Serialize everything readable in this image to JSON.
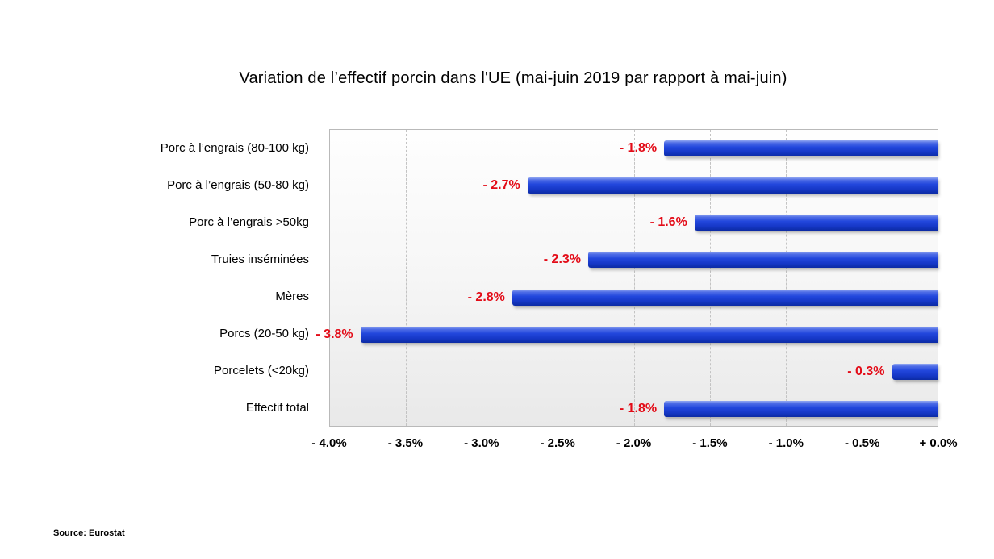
{
  "page": {
    "title": "Variation de l’effectif porcin dans l'UE (mai-juin 2019 par rapport à mai-juin)",
    "source": "Source: Eurostat"
  },
  "chart_data": {
    "type": "bar",
    "orientation": "horizontal",
    "title": "Variation de l’effectif porcin dans l'UE (mai-juin 2019 par rapport à mai-juin)",
    "categories": [
      "Porc à l’engrais (80-100 kg)",
      "Porc à l’engrais (50-80 kg)",
      "Porc à l’engrais >50kg",
      "Truies inséminées",
      "Mères",
      "Porcs (20-50 kg)",
      "Porcelets (<20kg)",
      "Effectif total"
    ],
    "values": [
      -1.8,
      -2.7,
      -1.6,
      -2.3,
      -2.8,
      -3.8,
      -0.3,
      -1.8
    ],
    "data_labels": [
      "- 1.8%",
      "- 2.7%",
      "- 1.6%",
      "- 2.3%",
      "- 2.8%",
      "- 3.8%",
      "- 0.3%",
      "- 1.8%"
    ],
    "x_tick_labels": [
      "- 4.0%",
      "- 3.5%",
      "- 3.0%",
      "- 2.5%",
      "- 2.0%",
      "- 1.5%",
      "- 1.0%",
      "- 0.5%",
      "+ 0.0%"
    ],
    "xlim": [
      -4.0,
      0.0
    ],
    "grid": "vertical-dashed",
    "legend": "none",
    "xlabel": "",
    "ylabel": "",
    "source": "Source: Eurostat",
    "colors": {
      "bar": "#2247dc",
      "bar_highlight": "#92a7f1",
      "bar_dark_edge": "#0c2ba4",
      "data_label": "#e30b17",
      "grid_line": "#c3c3c3",
      "plot_border": "#b9b9b9",
      "plot_bg_top": "#fefefe",
      "plot_bg_bottom": "#e9e9e9",
      "background": "#ffffff"
    }
  }
}
